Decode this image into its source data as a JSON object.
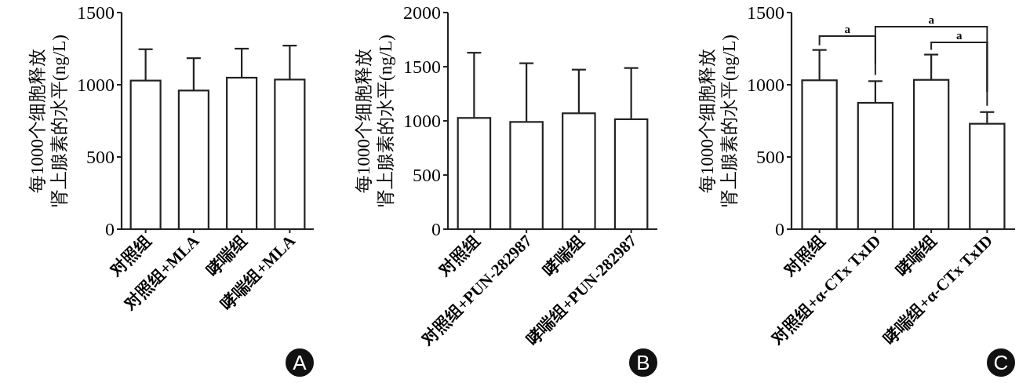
{
  "chart_data": [
    {
      "type": "bar",
      "ylabel": "每1000个细胞释放肾上腺素的水平(ng/L)",
      "categories": [
        "对照组",
        "对照组+MLA",
        "哮喘组",
        "哮喘组+MLA"
      ],
      "values": [
        1029,
        960,
        1049,
        1036
      ],
      "errors": [
        [
          1029,
          1246
        ],
        [
          960,
          1184
        ],
        [
          1049,
          1250
        ],
        [
          1036,
          1271
        ]
      ],
      "color": "#ffffff",
      "ylim": [
        0,
        1500
      ],
      "yticks": [
        0,
        500,
        1000,
        1500
      ],
      "annotations": [
        "A"
      ]
    },
    {
      "type": "bar",
      "ylabel": "每1000个细胞释放肾上腺素的水平(ng/L)",
      "categories": [
        "对照组",
        "对照组+PUN-282987",
        "哮喘组",
        "哮喘组+PUN-282987"
      ],
      "values": [
        1027,
        990,
        1070,
        1015
      ],
      "errors": [
        [
          1027,
          1629
        ],
        [
          990,
          1532
        ],
        [
          1070,
          1473
        ],
        [
          1015,
          1488
        ]
      ],
      "color": "#ffffff",
      "ylim": [
        0,
        2000
      ],
      "yticks": [
        0,
        500,
        1000,
        1500,
        2000
      ],
      "annotations": [
        "B"
      ]
    },
    {
      "type": "bar",
      "ylabel": "每1000个细胞释放肾上腺素的水平(ng/L)",
      "categories": [
        "对照组",
        "对照组+α-CTx TxID",
        "哮喘组",
        "哮喘组+α-CTx TxID"
      ],
      "values": [
        1031,
        875,
        1034,
        730
      ],
      "errors": [
        [
          1031,
          1241
        ],
        [
          875,
          1025
        ],
        [
          1034,
          1209
        ],
        [
          730,
          811
        ]
      ],
      "color": "#ffffff",
      "ylim": [
        0,
        1500
      ],
      "yticks": [
        0,
        500,
        1000,
        1500
      ],
      "annotations": [
        "a",
        "a",
        "a",
        "C"
      ]
    }
  ]
}
